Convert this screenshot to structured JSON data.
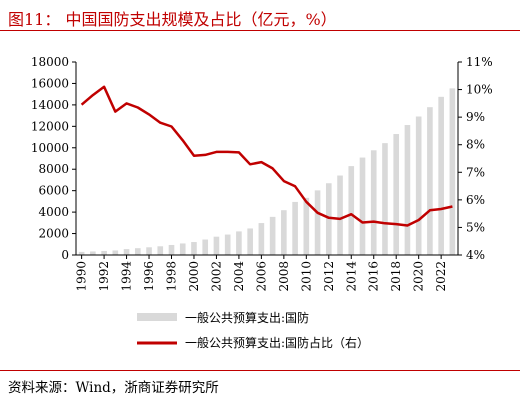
{
  "header": {
    "title": "图11：  中国国防支出规模及占比（亿元，%）"
  },
  "footer": {
    "source": "资料来源：Wind，浙商证券研究所"
  },
  "colors": {
    "accent": "#c00000",
    "bar": "#d9d9d9",
    "line": "#c00000"
  },
  "chart_data": {
    "type": "bar+line",
    "categories": [
      "1990",
      "1991",
      "1992",
      "1993",
      "1994",
      "1995",
      "1996",
      "1997",
      "1998",
      "1999",
      "2000",
      "2001",
      "2002",
      "2003",
      "2004",
      "2005",
      "2006",
      "2007",
      "2008",
      "2009",
      "2010",
      "2011",
      "2012",
      "2013",
      "2014",
      "2015",
      "2016",
      "2017",
      "2018",
      "2019",
      "2020",
      "2021",
      "2022",
      "2023"
    ],
    "x_tick_labels": [
      "1990",
      "1992",
      "1994",
      "1996",
      "1998",
      "2000",
      "2002",
      "2004",
      "2006",
      "2008",
      "2010",
      "2012",
      "2014",
      "2016",
      "2018",
      "2020",
      "2022"
    ],
    "y_left": {
      "range": [
        0,
        18000
      ],
      "ticks": [
        "0",
        "2000",
        "4000",
        "6000",
        "8000",
        "10000",
        "12000",
        "14000",
        "16000",
        "18000"
      ]
    },
    "y_right": {
      "range": [
        4,
        11
      ],
      "ticks": [
        "4%",
        "5%",
        "6%",
        "7%",
        "8%",
        "9%",
        "10%",
        "11%"
      ]
    },
    "series": [
      {
        "name": "一般公共预算支出:国防",
        "type": "bar",
        "axis": "left",
        "values": [
          290,
          330,
          378,
          426,
          551,
          637,
          720,
          813,
          935,
          1077,
          1208,
          1442,
          1708,
          1908,
          2200,
          2475,
          2979,
          3555,
          4179,
          4951,
          5333,
          6028,
          6692,
          7411,
          8290,
          9088,
          9766,
          10432,
          11280,
          12122,
          12918,
          13787,
          14752,
          15537
        ]
      },
      {
        "name": "一般公共预算支出:国防占比（右）",
        "type": "line",
        "axis": "right",
        "values": [
          9.45,
          9.8,
          10.1,
          9.2,
          9.5,
          9.35,
          9.1,
          8.8,
          8.66,
          8.16,
          7.6,
          7.63,
          7.74,
          7.74,
          7.72,
          7.29,
          7.37,
          7.14,
          6.68,
          6.49,
          5.93,
          5.53,
          5.35,
          5.31,
          5.48,
          5.18,
          5.21,
          5.15,
          5.12,
          5.07,
          5.27,
          5.62,
          5.67,
          5.76
        ]
      }
    ],
    "legend": {
      "placement": "bottom-center"
    },
    "grid": false
  }
}
